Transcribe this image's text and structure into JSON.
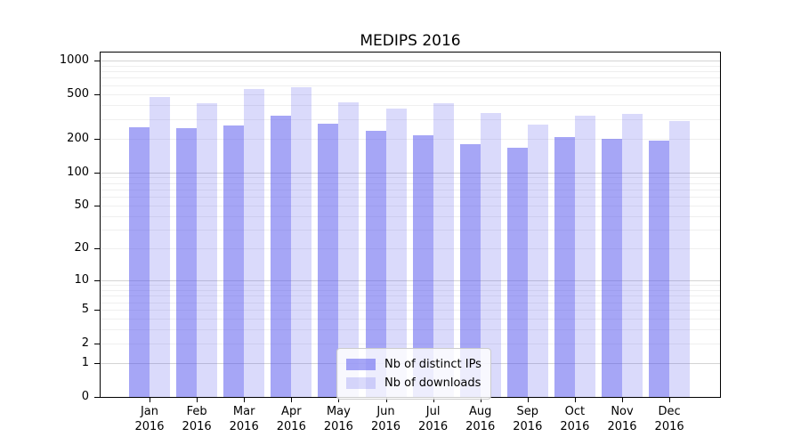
{
  "chart": {
    "title": "MEDIPS 2016",
    "year_label": "2016",
    "colors": {
      "bar_distinct_ips": "rgba(85,85,238,0.52)",
      "bar_downloads": "rgba(85,85,238,0.22)",
      "grid_major": "#d4d4d4",
      "grid_minor": "#efefef",
      "axis": "#000000"
    },
    "legend": [
      {
        "label": "Nb of distinct IPs",
        "color": "rgba(85,85,238,0.52)"
      },
      {
        "label": "Nb of downloads",
        "color": "rgba(85,85,238,0.22)"
      }
    ]
  },
  "chart_data": {
    "type": "bar",
    "title": "MEDIPS 2016",
    "xlabel": "",
    "ylabel": "",
    "categories": [
      "Jan",
      "Feb",
      "Mar",
      "Apr",
      "May",
      "Jun",
      "Jul",
      "Aug",
      "Sep",
      "Oct",
      "Nov",
      "Dec"
    ],
    "category_year": "2016",
    "series": [
      {
        "name": "Nb of distinct IPs",
        "values": [
          255,
          250,
          262,
          324,
          274,
          236,
          213,
          177,
          166,
          207,
          201,
          194
        ]
      },
      {
        "name": "Nb of downloads",
        "values": [
          476,
          417,
          554,
          580,
          426,
          371,
          413,
          340,
          266,
          322,
          336,
          289
        ]
      }
    ],
    "yscale": "log10(1+x)",
    "ylim": [
      0,
      1000
    ],
    "yticks": [
      0,
      1,
      2,
      5,
      10,
      20,
      50,
      100,
      200,
      500,
      1000
    ],
    "grid": "horizontal, minor at 2-9 per decade, major at 1/10/100/1000",
    "legend_position": "lower center"
  }
}
